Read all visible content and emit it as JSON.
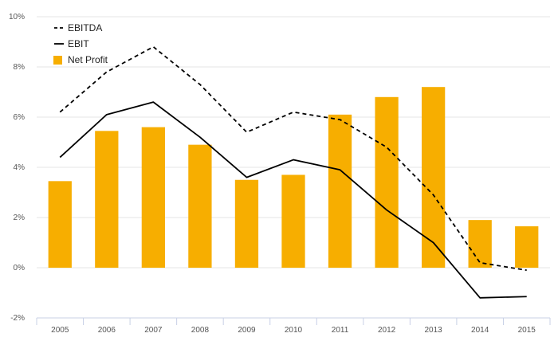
{
  "chart_data": {
    "type": "bar",
    "categories": [
      "2005",
      "2006",
      "2007",
      "2008",
      "2009",
      "2010",
      "2011",
      "2012",
      "2013",
      "2014",
      "2015"
    ],
    "series": [
      {
        "name": "EBITDA",
        "kind": "line",
        "style": "dashed",
        "color": "#000000",
        "values": [
          6.2,
          7.8,
          8.8,
          7.3,
          5.4,
          6.2,
          5.9,
          4.8,
          2.9,
          0.2,
          -0.1
        ]
      },
      {
        "name": "EBIT",
        "kind": "line",
        "style": "solid",
        "color": "#000000",
        "values": [
          4.4,
          6.1,
          6.6,
          5.2,
          3.6,
          4.3,
          3.9,
          2.3,
          1.0,
          -1.2,
          -1.15
        ]
      },
      {
        "name": "Net Profit",
        "kind": "bar",
        "color": "#f7ae00",
        "values": [
          3.45,
          5.45,
          5.6,
          4.9,
          3.5,
          3.7,
          6.1,
          6.8,
          7.2,
          1.9,
          1.65
        ]
      }
    ],
    "yticks": [
      "10%",
      "8%",
      "6%",
      "4%",
      "2%",
      "0%",
      "-2%"
    ],
    "ylim": [
      -2,
      10
    ],
    "xlabel": "",
    "ylabel": "",
    "grid": true,
    "legend_position": "top-left"
  }
}
